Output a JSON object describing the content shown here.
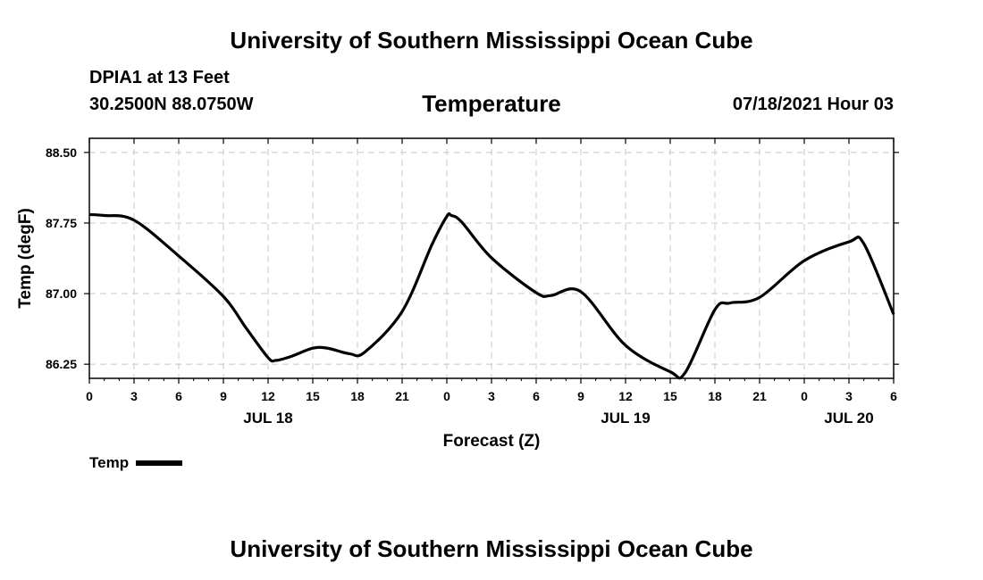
{
  "header": {
    "org_title": "University of Southern Mississippi Ocean Cube",
    "station": "DPIA1 at 13 Feet",
    "coords": "30.2500N  88.0750W",
    "forecast_time": "07/18/2021 Hour 03"
  },
  "footer": {
    "org_title": "University of Southern Mississippi Ocean Cube"
  },
  "chart_data": {
    "type": "line",
    "title": "Temperature",
    "xlabel": "Forecast (Z)",
    "ylabel": "Temp (degF)",
    "xlim": [
      0,
      54
    ],
    "ylim": [
      86.1,
      88.65
    ],
    "x_ticks": [
      0,
      3,
      6,
      9,
      12,
      15,
      18,
      21,
      24,
      27,
      30,
      33,
      36,
      39,
      42,
      45,
      48,
      51,
      54
    ],
    "x_tick_labels": [
      "0",
      "3",
      "6",
      "9",
      "12",
      "15",
      "18",
      "21",
      "0",
      "3",
      "6",
      "9",
      "12",
      "15",
      "18",
      "21",
      "0",
      "3",
      "6"
    ],
    "y_ticks": [
      86.25,
      87.0,
      87.75,
      88.5
    ],
    "y_tick_labels": [
      "86.25",
      "87.00",
      "87.75",
      "88.50"
    ],
    "day_labels": [
      {
        "x": 12,
        "label": "JUL 18"
      },
      {
        "x": 36,
        "label": "JUL 19"
      },
      {
        "x": 51,
        "label": "JUL 20"
      }
    ],
    "grid": true,
    "legend": {
      "position": "bottom-left",
      "entries": [
        "Temp"
      ]
    },
    "series": [
      {
        "name": "Temp",
        "x": [
          0,
          1,
          3,
          6,
          9,
          10.5,
          12,
          12.5,
          13.5,
          15,
          16,
          17.5,
          18.5,
          21,
          23,
          24,
          24.3,
          25,
          27,
          30,
          31,
          33,
          36,
          39,
          40,
          42,
          43,
          45,
          48,
          51,
          52,
          54
        ],
        "y": [
          87.84,
          87.83,
          87.78,
          87.4,
          86.97,
          86.64,
          86.32,
          86.29,
          86.33,
          86.42,
          86.42,
          86.36,
          86.38,
          86.81,
          87.52,
          87.82,
          87.83,
          87.76,
          87.38,
          87.01,
          86.98,
          87.02,
          86.45,
          86.17,
          86.16,
          86.83,
          86.9,
          86.96,
          87.35,
          87.55,
          87.53,
          86.78
        ]
      }
    ]
  }
}
